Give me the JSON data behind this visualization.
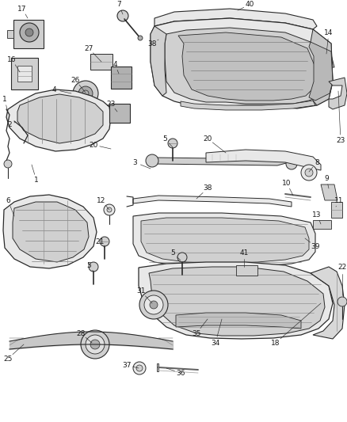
{
  "bg_color": "#ffffff",
  "line_color": "#2a2a2a",
  "label_color": "#1a1a1a",
  "fig_width": 4.38,
  "fig_height": 5.33,
  "dpi": 100,
  "line_width": 0.7,
  "fill_light": "#e8e8e8",
  "fill_mid": "#d0d0d0",
  "fill_dark": "#b0b0b0"
}
